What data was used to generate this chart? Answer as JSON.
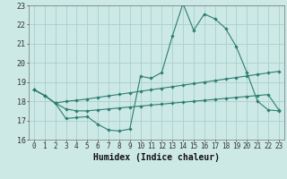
{
  "background_color": "#cce9e5",
  "grid_color": "#aacfcc",
  "line_color": "#2e7d72",
  "xlim": [
    -0.5,
    23.5
  ],
  "ylim": [
    16,
    23
  ],
  "xlabel": "Humidex (Indice chaleur)",
  "xticks": [
    0,
    1,
    2,
    3,
    4,
    5,
    6,
    7,
    8,
    9,
    10,
    11,
    12,
    13,
    14,
    15,
    16,
    17,
    18,
    19,
    20,
    21,
    22,
    23
  ],
  "yticks": [
    16,
    17,
    18,
    19,
    20,
    21,
    22,
    23
  ],
  "line1_x": [
    0,
    1,
    2,
    3,
    4,
    5,
    6,
    7,
    8,
    9,
    10,
    11,
    12,
    13,
    14,
    15,
    16,
    17,
    18,
    19,
    20,
    21,
    22,
    23
  ],
  "line1_y": [
    18.6,
    18.3,
    17.9,
    17.1,
    17.15,
    17.2,
    16.8,
    16.5,
    16.45,
    16.55,
    19.3,
    19.2,
    19.5,
    21.4,
    23.1,
    21.7,
    22.55,
    22.3,
    21.8,
    20.85,
    19.5,
    18.0,
    17.55,
    17.5
  ],
  "line2_x": [
    0,
    1,
    2,
    3,
    4,
    5,
    6,
    7,
    8,
    9,
    10,
    11,
    12,
    13,
    14,
    15,
    16,
    17,
    18,
    19,
    20,
    21,
    22,
    23
  ],
  "line2_y": [
    18.6,
    18.3,
    17.9,
    18.0,
    18.05,
    18.12,
    18.2,
    18.28,
    18.36,
    18.44,
    18.52,
    18.6,
    18.68,
    18.76,
    18.84,
    18.92,
    19.0,
    19.08,
    19.16,
    19.24,
    19.32,
    19.4,
    19.48,
    19.56
  ],
  "line3_x": [
    0,
    1,
    2,
    3,
    4,
    5,
    6,
    7,
    8,
    9,
    10,
    11,
    12,
    13,
    14,
    15,
    16,
    17,
    18,
    19,
    20,
    21,
    22,
    23
  ],
  "line3_y": [
    18.6,
    18.3,
    17.9,
    17.6,
    17.5,
    17.5,
    17.55,
    17.6,
    17.65,
    17.7,
    17.75,
    17.8,
    17.85,
    17.9,
    17.95,
    18.0,
    18.05,
    18.1,
    18.15,
    18.2,
    18.25,
    18.3,
    18.35,
    17.55
  ],
  "tick_fontsize": 5.5,
  "label_fontsize": 7.0
}
